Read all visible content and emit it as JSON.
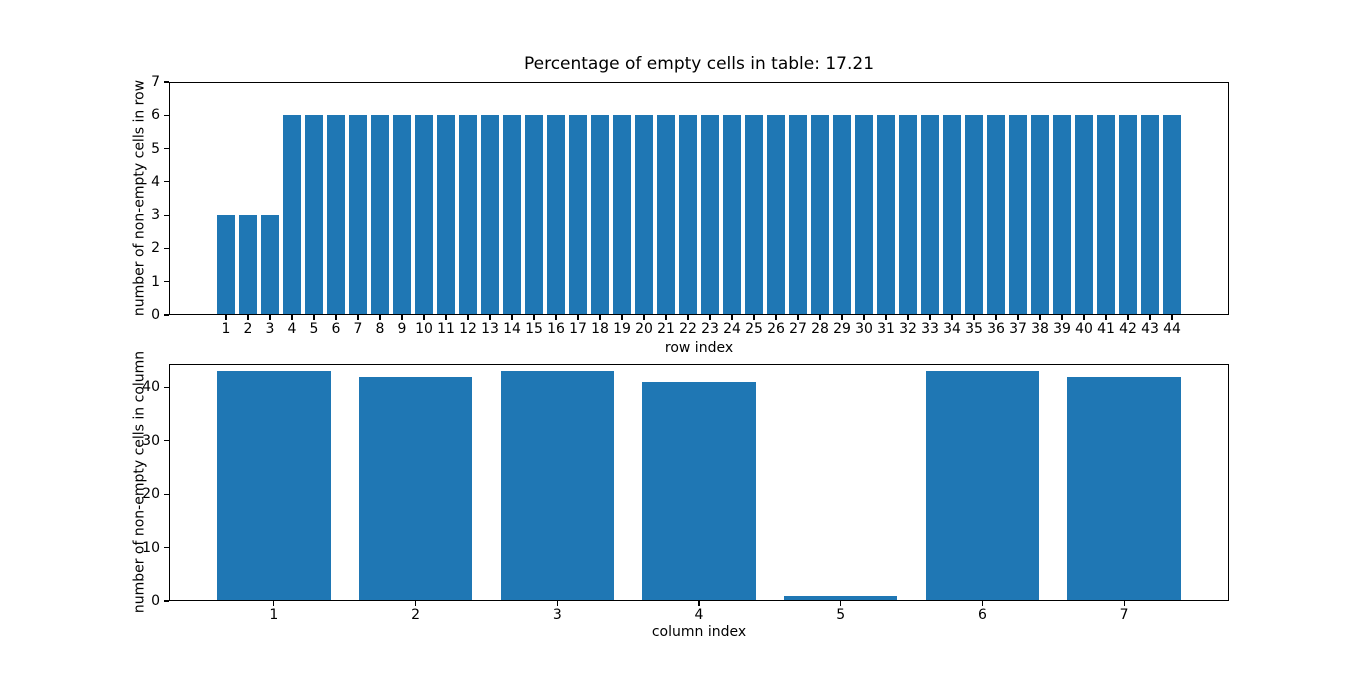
{
  "figure": {
    "background": "#ffffff",
    "bar_color": "#1f77b4",
    "axis_color": "#000000",
    "text_color": "#000000"
  },
  "chart_data": [
    {
      "type": "bar",
      "title": "Percentage of empty cells in table: 17.21",
      "xlabel": "row index",
      "ylabel": "number of non-empty cells in row",
      "categories": [
        "1",
        "2",
        "3",
        "4",
        "5",
        "6",
        "7",
        "8",
        "9",
        "10",
        "11",
        "12",
        "13",
        "14",
        "15",
        "16",
        "17",
        "18",
        "19",
        "20",
        "21",
        "22",
        "23",
        "24",
        "25",
        "26",
        "27",
        "28",
        "29",
        "30",
        "31",
        "32",
        "33",
        "34",
        "35",
        "36",
        "37",
        "38",
        "39",
        "40",
        "41",
        "42",
        "43",
        "44"
      ],
      "values": [
        3,
        3,
        3,
        6,
        6,
        6,
        6,
        6,
        6,
        6,
        6,
        6,
        6,
        6,
        6,
        6,
        6,
        6,
        6,
        6,
        6,
        6,
        6,
        6,
        6,
        6,
        6,
        6,
        6,
        6,
        6,
        6,
        6,
        6,
        6,
        6,
        6,
        6,
        6,
        6,
        6,
        6,
        6,
        6
      ],
      "ylim": [
        0,
        7
      ],
      "yticks": [
        0,
        1,
        2,
        3,
        4,
        5,
        6,
        7
      ],
      "xlim": [
        -1.59,
        46.59
      ],
      "bar_width": 0.8,
      "grid": false,
      "legend": "none"
    },
    {
      "type": "bar",
      "title": "",
      "xlabel": "column index",
      "ylabel": "number of non-empty cells in column",
      "categories": [
        "1",
        "2",
        "3",
        "4",
        "5",
        "6",
        "7"
      ],
      "values": [
        43,
        42,
        43,
        41,
        1,
        43,
        42
      ],
      "ylim": [
        0,
        44.4
      ],
      "yticks": [
        0,
        10,
        20,
        30,
        40
      ],
      "xlim": [
        0.26,
        7.74
      ],
      "bar_width": 0.8,
      "grid": false,
      "legend": "none"
    }
  ]
}
